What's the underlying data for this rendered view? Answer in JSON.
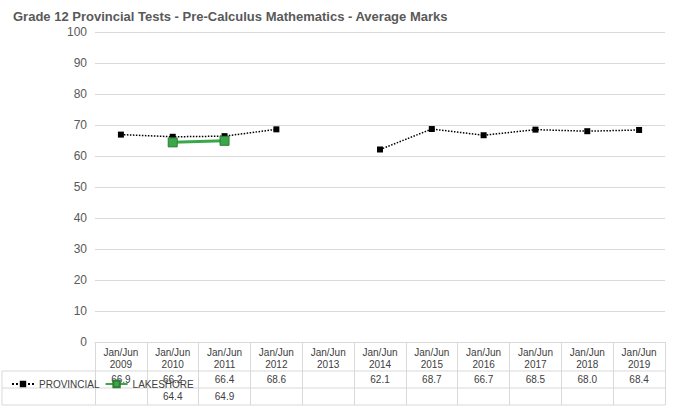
{
  "chart_data": {
    "type": "line",
    "title": "Grade 12 Provincial Tests - Pre-Calculus Mathematics - Average Marks",
    "categories": [
      "Jan/Jun 2009",
      "Jan/Jun 2010",
      "Jan/Jun 2011",
      "Jan/Jun 2012",
      "Jan/Jun 2013",
      "Jan/Jun 2014",
      "Jan/Jun 2015",
      "Jan/Jun 2016",
      "Jan/Jun 2017",
      "Jan/Jun 2018",
      "Jan/Jun 2019"
    ],
    "series": [
      {
        "name": "PROVINCIAL",
        "color": "#000000",
        "marker": "square",
        "line_style": "dotted",
        "values": [
          66.9,
          66.2,
          66.4,
          68.6,
          null,
          62.1,
          68.7,
          66.7,
          68.5,
          68.0,
          68.4
        ],
        "value_labels": [
          "66.9",
          "66.2",
          "66.4",
          "68.6",
          null,
          "62.1",
          "68.7",
          "66.7",
          "68.5",
          "68.0",
          "68.4"
        ]
      },
      {
        "name": "LAKESHORE",
        "color": "#3aa84a",
        "marker": "square",
        "line_style": "solid",
        "values": [
          null,
          64.4,
          64.9,
          null,
          null,
          null,
          null,
          null,
          null,
          null,
          null
        ],
        "value_labels": [
          null,
          "64.4",
          "64.9",
          null,
          null,
          null,
          null,
          null,
          null,
          null,
          null
        ]
      }
    ],
    "ylim": [
      0,
      100
    ],
    "yticks": [
      0,
      10,
      20,
      30,
      40,
      50,
      60,
      70,
      80,
      90,
      100
    ],
    "grid": true,
    "legend": "bottom"
  }
}
